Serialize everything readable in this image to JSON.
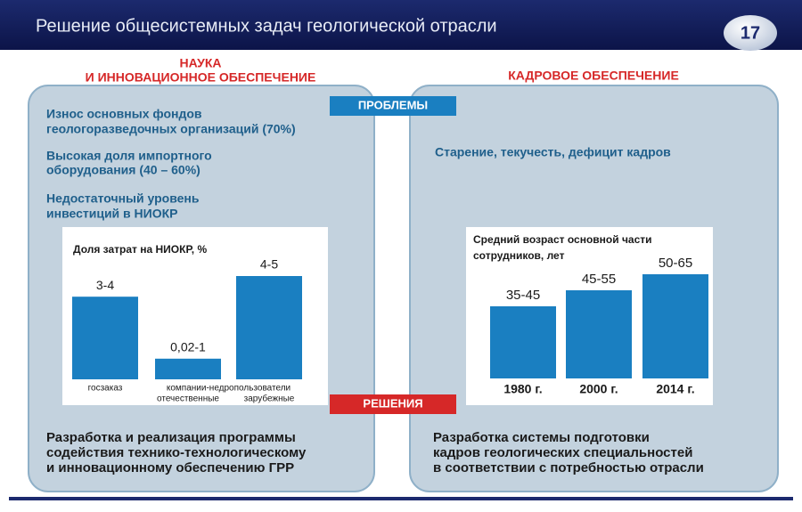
{
  "header": {
    "title": "Решение общесистемных задач геологической отрасли",
    "slide_number": "17"
  },
  "left": {
    "heading": [
      "НАУКА",
      "И ИННОВАЦИОННОЕ ОБЕСПЕЧЕНИЕ"
    ],
    "problems": [
      [
        "Износ основных фондов",
        "геологоразведочных организаций (70%)"
      ],
      [
        "Высокая доля импортного",
        "оборудования (40 – 60%)"
      ],
      [
        "Недостаточный уровень",
        "инвестиций в НИОКР"
      ]
    ],
    "chart_data": {
      "type": "bar",
      "title": "Доля затрат на НИОКР, %",
      "group_label": "компании-недропользователи",
      "categories": [
        "госзаказ",
        "отечественные",
        "зарубежные"
      ],
      "values": [
        {
          "low": 3,
          "high": 4,
          "label": "3-4"
        },
        {
          "low": 0.02,
          "high": 1,
          "label": "0,02-1"
        },
        {
          "low": 4,
          "high": 5,
          "label": "4-5"
        }
      ],
      "color": "#1a7fc1"
    },
    "solution": [
      "Разработка и реализация программы",
      "содействия технико-технологическому",
      "и инновационному обеспечению ГРР"
    ]
  },
  "right": {
    "heading": "КАДРОВОЕ ОБЕСПЕЧЕНИЕ",
    "problem": "Старение, текучесть, дефицит кадров",
    "chart_data": {
      "type": "bar",
      "title": [
        "Средний  возраст основной части",
        "сотрудников, лет"
      ],
      "categories": [
        "1980 г.",
        "2000 г.",
        "2014 г."
      ],
      "values": [
        {
          "low": 35,
          "high": 45,
          "label": "35-45"
        },
        {
          "low": 45,
          "high": 55,
          "label": "45-55"
        },
        {
          "low": 50,
          "high": 65,
          "label": "50-65"
        }
      ],
      "color": "#1a7fc1"
    },
    "solution": [
      "Разработка системы подготовки",
      "кадров геологических специальностей",
      "в соответствии с потребностью отрасли"
    ]
  },
  "badges": {
    "problems": "ПРОБЛЕМЫ",
    "solutions": "РЕШЕНИЯ"
  }
}
